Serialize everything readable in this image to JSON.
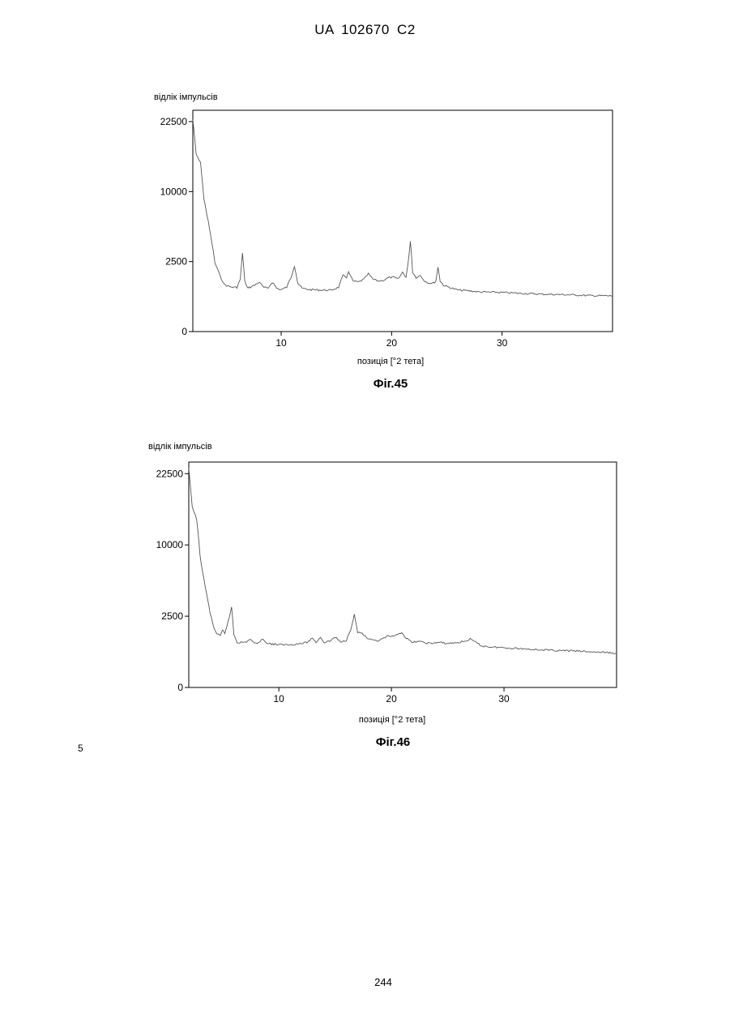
{
  "header": {
    "text": "UA   102670   C2"
  },
  "chart_data": [
    {
      "type": "line",
      "ylabel": "відлік імпульсів",
      "xlabel": "позиція [°2 тета]",
      "caption": "Фіг.45",
      "x_range": [
        2,
        40
      ],
      "xticks": [
        10,
        20,
        30
      ],
      "y_ticks": [
        0,
        2500,
        10000,
        22500
      ],
      "y_ticks_are_sqrt_scale": true,
      "grid": false,
      "series": [
        {
          "x": [
            2.0,
            2.3,
            2.7,
            3.0,
            3.3,
            3.6,
            4.0,
            4.4,
            4.8,
            5.2,
            5.6,
            6.0,
            6.3,
            6.5,
            6.7,
            6.9,
            7.2,
            7.6,
            8.0,
            8.4,
            8.8,
            9.2,
            9.6,
            10.0,
            10.5,
            10.9,
            11.2,
            11.5,
            11.9,
            12.5,
            13.5,
            14.5,
            15.2,
            15.6,
            15.9,
            16.1,
            16.5,
            17.0,
            17.5,
            17.9,
            18.3,
            18.8,
            19.3,
            19.8,
            20.2,
            20.6,
            21.0,
            21.3,
            21.5,
            21.7,
            21.9,
            22.2,
            22.6,
            23.0,
            23.4,
            23.8,
            24.0,
            24.2,
            24.4,
            24.7,
            25.2,
            26.0,
            27.0,
            28.0,
            30.0,
            32.0,
            34.0,
            36.0,
            38.0,
            40.0
          ],
          "y": [
            22900,
            16000,
            14500,
            9000,
            6800,
            4800,
            2400,
            1700,
            1150,
            1050,
            1000,
            1000,
            1400,
            3100,
            1300,
            1000,
            1000,
            1100,
            1250,
            1000,
            950,
            1250,
            950,
            900,
            1000,
            1500,
            2200,
            1200,
            950,
            900,
            880,
            870,
            1000,
            1600,
            1500,
            1800,
            1300,
            1250,
            1400,
            1700,
            1400,
            1300,
            1350,
            1500,
            1500,
            1400,
            1800,
            1500,
            2400,
            4200,
            1800,
            1500,
            1600,
            1300,
            1200,
            1200,
            1300,
            2100,
            1300,
            1100,
            1000,
            880,
            850,
            800,
            780,
            740,
            710,
            690,
            660,
            650
          ]
        }
      ]
    },
    {
      "type": "line",
      "ylabel": "відлік імпульсів",
      "xlabel": "позиція [°2 тета]",
      "caption": "Фіг.46",
      "x_range": [
        2,
        40
      ],
      "xticks": [
        10,
        20,
        30
      ],
      "y_ticks": [
        0,
        2500,
        10000,
        22500
      ],
      "y_ticks_are_sqrt_scale": true,
      "grid": false,
      "series": [
        {
          "x": [
            2.0,
            2.3,
            2.7,
            3.0,
            3.3,
            3.6,
            3.9,
            4.2,
            4.5,
            4.8,
            5.0,
            5.2,
            5.4,
            5.6,
            5.8,
            6.0,
            6.3,
            7.0,
            7.5,
            7.8,
            8.2,
            8.6,
            9.0,
            10.0,
            11.0,
            12.0,
            12.5,
            13.0,
            13.3,
            13.7,
            14.0,
            14.5,
            15.0,
            15.5,
            16.0,
            16.4,
            16.7,
            17.0,
            17.4,
            17.8,
            18.2,
            18.7,
            19.2,
            19.7,
            20.2,
            20.6,
            20.9,
            21.3,
            21.8,
            22.3,
            22.8,
            23.5,
            24.2,
            25.0,
            26.0,
            26.5,
            27.0,
            27.5,
            28.0,
            29.0,
            30.0,
            32.0,
            34.0,
            36.0,
            38.0,
            40.0
          ],
          "y": [
            23500,
            16000,
            14000,
            8500,
            6000,
            4200,
            2700,
            1800,
            1400,
            1300,
            1600,
            1450,
            1900,
            2400,
            3200,
            1400,
            1000,
            1000,
            1150,
            950,
            1000,
            1150,
            950,
            900,
            900,
            950,
            1000,
            1200,
            1000,
            1250,
            1000,
            1050,
            1250,
            1000,
            1100,
            1700,
            2600,
            1500,
            1450,
            1200,
            1100,
            1050,
            1150,
            1300,
            1250,
            1400,
            1500,
            1200,
            1000,
            1050,
            1000,
            950,
            1000,
            950,
            1000,
            1050,
            1150,
            1000,
            850,
            800,
            780,
            730,
            680,
            660,
            620,
            580
          ]
        }
      ]
    }
  ],
  "line_number": "5",
  "page_number": "244"
}
